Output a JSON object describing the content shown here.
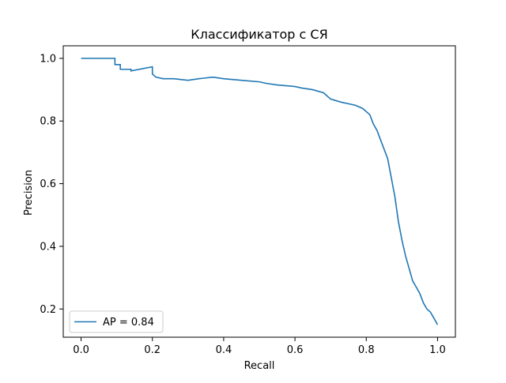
{
  "chart_data": {
    "type": "line",
    "title": "Классификатор с СЯ",
    "xlabel": "Recall",
    "ylabel": "Precision",
    "xlim": [
      -0.05,
      1.05
    ],
    "ylim": [
      0.11,
      1.04
    ],
    "xticks": [
      0.0,
      0.2,
      0.4,
      0.6,
      0.8,
      1.0
    ],
    "xtick_labels": [
      "0.0",
      "0.2",
      "0.4",
      "0.6",
      "0.8",
      "1.0"
    ],
    "yticks": [
      0.2,
      0.4,
      0.6,
      0.8,
      1.0
    ],
    "ytick_labels": [
      "0.2",
      "0.4",
      "0.6",
      "0.8",
      "1.0"
    ],
    "grid": false,
    "legend_position": "lower-left",
    "series": [
      {
        "name": "AP = 0.84",
        "color": "#1f77b4",
        "x": [
          0.0,
          0.095,
          0.095,
          0.11,
          0.11,
          0.14,
          0.14,
          0.2,
          0.2,
          0.21,
          0.23,
          0.26,
          0.3,
          0.33,
          0.37,
          0.4,
          0.45,
          0.5,
          0.52,
          0.55,
          0.6,
          0.62,
          0.65,
          0.68,
          0.7,
          0.73,
          0.75,
          0.77,
          0.79,
          0.8,
          0.81,
          0.82,
          0.83,
          0.84,
          0.85,
          0.86,
          0.87,
          0.88,
          0.89,
          0.9,
          0.91,
          0.92,
          0.93,
          0.94,
          0.95,
          0.96,
          0.97,
          0.98,
          0.99,
          1.0
        ],
        "y": [
          1.0,
          1.0,
          0.98,
          0.98,
          0.965,
          0.965,
          0.96,
          0.973,
          0.95,
          0.94,
          0.935,
          0.935,
          0.93,
          0.935,
          0.94,
          0.935,
          0.93,
          0.925,
          0.92,
          0.915,
          0.91,
          0.905,
          0.9,
          0.89,
          0.87,
          0.86,
          0.855,
          0.85,
          0.84,
          0.83,
          0.82,
          0.79,
          0.77,
          0.74,
          0.71,
          0.68,
          0.62,
          0.56,
          0.48,
          0.42,
          0.37,
          0.33,
          0.29,
          0.27,
          0.25,
          0.22,
          0.2,
          0.19,
          0.17,
          0.15
        ]
      }
    ]
  }
}
